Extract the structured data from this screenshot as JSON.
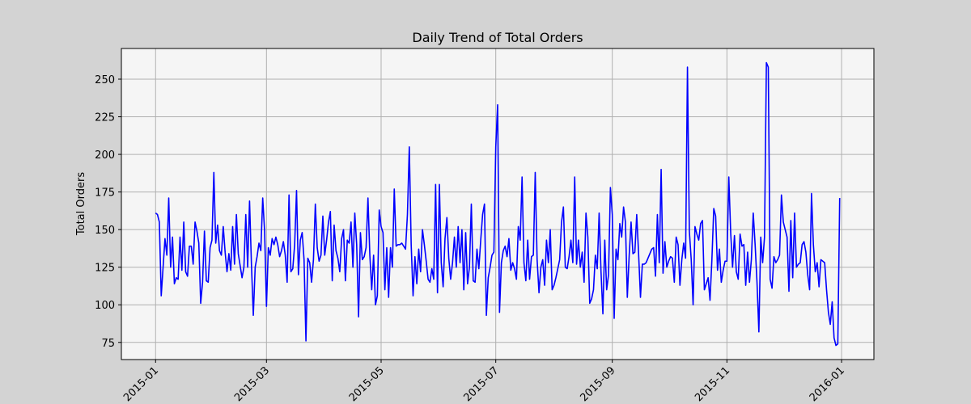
{
  "chart_data": {
    "type": "line",
    "title": "Daily Trend of Total Orders",
    "ylabel": "Total Orders",
    "color": "#0000ff",
    "grid": true,
    "x": [
      0,
      1,
      2,
      3,
      4,
      5,
      6,
      7,
      8,
      9,
      10,
      11,
      12,
      13,
      14,
      15,
      16,
      17,
      18,
      19,
      20,
      21,
      22,
      23,
      24,
      25,
      26,
      27,
      28,
      29,
      30,
      31,
      32,
      33,
      34,
      35,
      36,
      37,
      38,
      39,
      40,
      41,
      42,
      43,
      44,
      45,
      46,
      47,
      48,
      49,
      50,
      51,
      52,
      53,
      54,
      55,
      56,
      57,
      58,
      59,
      60,
      61,
      62,
      63,
      64,
      65,
      66,
      67,
      68,
      69,
      70,
      71,
      72,
      73,
      74,
      75,
      76,
      77,
      78,
      79,
      80,
      81,
      82,
      83,
      84,
      85,
      86,
      87,
      88,
      89,
      90,
      91,
      92,
      93,
      94,
      95,
      96,
      97,
      98,
      99,
      100,
      101,
      102,
      103,
      104,
      105,
      106,
      107,
      108,
      109,
      110,
      111,
      112,
      113,
      114,
      115,
      116,
      117,
      118,
      119,
      120,
      121,
      122,
      123,
      124,
      125,
      126,
      127,
      128,
      129,
      130,
      131,
      132,
      133,
      134,
      135,
      136,
      137,
      138,
      139,
      140,
      141,
      142,
      143,
      144,
      145,
      146,
      147,
      148,
      149,
      150,
      151,
      152,
      153,
      154,
      155,
      156,
      157,
      158,
      159,
      160,
      161,
      162,
      163,
      164,
      165,
      166,
      167,
      168,
      169,
      170,
      171,
      172,
      173,
      174,
      175,
      176,
      177,
      178,
      179,
      180,
      181,
      182,
      183,
      184,
      185,
      186,
      187,
      188,
      189,
      190,
      191,
      192,
      193,
      194,
      195,
      196,
      197,
      198,
      199,
      200,
      201,
      202,
      203,
      204,
      205,
      206,
      207,
      208,
      209,
      210,
      211,
      212,
      213,
      214,
      215,
      216,
      217,
      218,
      219,
      220,
      221,
      222,
      223,
      224,
      225,
      226,
      227,
      228,
      229,
      230,
      231,
      232,
      233,
      234,
      235,
      236,
      237,
      238,
      239,
      240,
      241,
      242,
      243,
      244,
      245,
      246,
      247,
      248,
      249,
      250,
      251,
      252,
      253,
      254,
      255,
      256,
      257,
      258,
      259,
      260,
      261,
      262,
      263,
      264,
      265,
      266,
      267,
      268,
      269,
      270,
      271,
      272,
      273,
      274,
      275,
      276,
      277,
      278,
      279,
      280,
      281,
      282,
      283,
      284,
      285,
      286,
      287,
      288,
      289,
      290,
      291,
      292,
      293,
      294,
      295,
      296,
      297,
      298,
      299,
      300,
      301,
      302,
      303,
      304,
      305,
      306,
      307,
      308,
      309,
      310,
      311,
      312,
      313,
      314,
      315,
      316,
      317,
      318,
      319,
      320,
      321,
      322,
      323,
      324,
      325,
      326,
      327,
      328,
      329,
      330,
      331,
      332,
      333,
      334,
      335,
      336,
      337,
      338,
      339,
      340,
      341,
      342,
      343,
      344,
      345,
      346,
      347,
      348,
      349,
      350,
      351,
      352,
      353,
      354,
      355,
      356,
      357,
      358,
      359,
      360,
      361,
      362,
      363,
      364
    ],
    "values": [
      161,
      160,
      155,
      106,
      125,
      144,
      133,
      171,
      125,
      145,
      114,
      118,
      117,
      145,
      123,
      155,
      122,
      119,
      139,
      139,
      127,
      155,
      149,
      141,
      101,
      115,
      149,
      116,
      115,
      138,
      143,
      188,
      141,
      153,
      136,
      133,
      152,
      135,
      122,
      134,
      123,
      152,
      127,
      160,
      134,
      126,
      118,
      125,
      160,
      125,
      169,
      127,
      93,
      125,
      132,
      141,
      136,
      171,
      149,
      99,
      138,
      133,
      144,
      140,
      145,
      140,
      132,
      136,
      142,
      133,
      115,
      173,
      122,
      124,
      140,
      176,
      120,
      143,
      148,
      130,
      76,
      131,
      128,
      115,
      130,
      167,
      138,
      129,
      133,
      159,
      133,
      143,
      155,
      162,
      116,
      153,
      136,
      131,
      122,
      144,
      150,
      116,
      143,
      141,
      155,
      125,
      161,
      140,
      92,
      148,
      130,
      132,
      138,
      171,
      133,
      110,
      133,
      100,
      106,
      163,
      152,
      148,
      110,
      138,
      105,
      138,
      125,
      177,
      139,
      140,
      140,
      141,
      139,
      137,
      160,
      205,
      140,
      106,
      132,
      114,
      137,
      122,
      150,
      140,
      129,
      117,
      115,
      124,
      117,
      180,
      108,
      180,
      128,
      112,
      144,
      158,
      131,
      117,
      128,
      145,
      125,
      152,
      128,
      150,
      110,
      148,
      114,
      125,
      167,
      116,
      115,
      137,
      124,
      143,
      160,
      167,
      93,
      118,
      125,
      133,
      135,
      205,
      233,
      95,
      128,
      136,
      139,
      132,
      144,
      123,
      128,
      124,
      117,
      152,
      143,
      185,
      128,
      116,
      143,
      117,
      132,
      133,
      188,
      130,
      108,
      125,
      130,
      113,
      143,
      128,
      150,
      110,
      113,
      118,
      124,
      130,
      155,
      165,
      125,
      124,
      132,
      143,
      128,
      185,
      127,
      143,
      125,
      135,
      115,
      161,
      145,
      101,
      104,
      110,
      133,
      124,
      161,
      122,
      94,
      143,
      110,
      120,
      178,
      160,
      91,
      137,
      130,
      154,
      145,
      165,
      155,
      105,
      133,
      155,
      134,
      135,
      160,
      134,
      105,
      127,
      127,
      128,
      131,
      134,
      137,
      138,
      119,
      160,
      128,
      190,
      121,
      142,
      125,
      129,
      132,
      131,
      115,
      145,
      140,
      113,
      130,
      141,
      131,
      258,
      149,
      130,
      100,
      152,
      147,
      143,
      154,
      156,
      110,
      114,
      118,
      103,
      130,
      164,
      159,
      123,
      137,
      115,
      123,
      129,
      129,
      185,
      148,
      125,
      146,
      122,
      117,
      147,
      139,
      140,
      113,
      135,
      115,
      130,
      161,
      140,
      115,
      82,
      145,
      128,
      145,
      261,
      258,
      117,
      111,
      132,
      128,
      130,
      133,
      173,
      155,
      150,
      145,
      109,
      156,
      118,
      161,
      125,
      127,
      128,
      140,
      142,
      135,
      120,
      110,
      174,
      140,
      122,
      128,
      112,
      130,
      129,
      128,
      110,
      95,
      87,
      102,
      78,
      73,
      74,
      171
    ],
    "xlim": [
      -18.2,
      382.2
    ],
    "xticks": [
      {
        "value": 0,
        "label": "2015-01"
      },
      {
        "value": 59,
        "label": "2015-03"
      },
      {
        "value": 120,
        "label": "2015-05"
      },
      {
        "value": 181,
        "label": "2015-07"
      },
      {
        "value": 243,
        "label": "2015-09"
      },
      {
        "value": 304,
        "label": "2015-11"
      },
      {
        "value": 365,
        "label": "2016-01"
      }
    ],
    "ylim": [
      63.6,
      270.4
    ],
    "yticks": [
      75,
      100,
      125,
      150,
      175,
      200,
      225,
      250
    ]
  }
}
